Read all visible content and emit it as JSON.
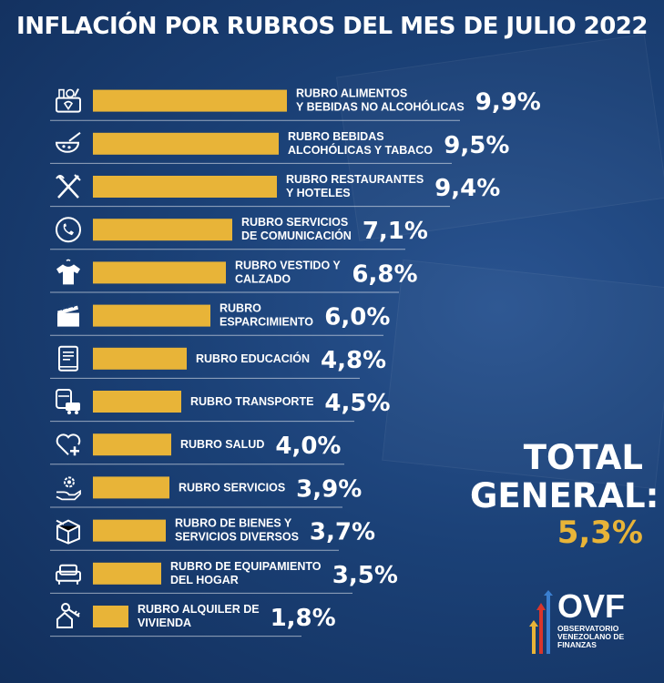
{
  "title": "INFLACIÓN POR RUBROS DEL MES DE JULIO 2022",
  "colors": {
    "bar": "#e8b438",
    "total_value": "#e8b438",
    "text": "#ffffff",
    "background": "#163a6e"
  },
  "chart_data": {
    "type": "bar",
    "orientation": "horizontal",
    "title": "INFLACIÓN POR RUBROS DEL MES DE JULIO 2022",
    "unit": "%",
    "categories": [
      {
        "lines": [
          "RUBRO ALIMENTOS",
          "Y BEBIDAS NO ALCOHÓLICAS"
        ],
        "icon": "grocery-basket-icon"
      },
      {
        "lines": [
          "RUBRO BEBIDAS",
          "ALCOHÓLICAS Y TABACO"
        ],
        "icon": "drink-bowl-icon"
      },
      {
        "lines": [
          "RUBRO RESTAURANTES",
          "Y HOTELES"
        ],
        "icon": "fork-knife-icon"
      },
      {
        "lines": [
          "RUBRO SERVICIOS",
          "DE COMUNICACIÓN"
        ],
        "icon": "phone-icon"
      },
      {
        "lines": [
          "RUBRO VESTIDO Y",
          "CALZADO"
        ],
        "icon": "shirt-icon"
      },
      {
        "lines": [
          "RUBRO",
          "ESPARCIMIENTO"
        ],
        "icon": "clapperboard-icon"
      },
      {
        "lines": [
          "RUBRO EDUCACIÓN"
        ],
        "icon": "book-icon"
      },
      {
        "lines": [
          "RUBRO TRANSPORTE"
        ],
        "icon": "bus-car-icon"
      },
      {
        "lines": [
          "RUBRO SALUD"
        ],
        "icon": "heart-plus-icon"
      },
      {
        "lines": [
          "RUBRO SERVICIOS"
        ],
        "icon": "gear-hand-icon"
      },
      {
        "lines": [
          "RUBRO DE BIENES Y",
          "SERVICIOS DIVERSOS"
        ],
        "icon": "box-icon"
      },
      {
        "lines": [
          "RUBRO DE EQUIPAMIENTO",
          "DEL HOGAR"
        ],
        "icon": "sofa-icon"
      },
      {
        "lines": [
          "RUBRO ALQUILER DE",
          "VIVIENDA"
        ],
        "icon": "house-key-icon"
      }
    ],
    "values": [
      9.9,
      9.5,
      9.4,
      7.1,
      6.8,
      6.0,
      4.8,
      4.5,
      4.0,
      3.9,
      3.7,
      3.5,
      1.8
    ],
    "value_labels": [
      "9,9%",
      "9,5%",
      "9,4%",
      "7,1%",
      "6,8%",
      "6,0%",
      "4,8%",
      "4,5%",
      "4,0%",
      "3,9%",
      "3,7%",
      "3,5%",
      "1,8%"
    ],
    "grid": false,
    "legend": "none"
  },
  "total": {
    "line1": "TOTAL",
    "line2": "GENERAL:",
    "value": "5,3%"
  },
  "logo": {
    "acronym": "OVF",
    "sub": [
      "OBSERVATORIO",
      "VENEZOLANO DE",
      "FINANZAS"
    ]
  }
}
